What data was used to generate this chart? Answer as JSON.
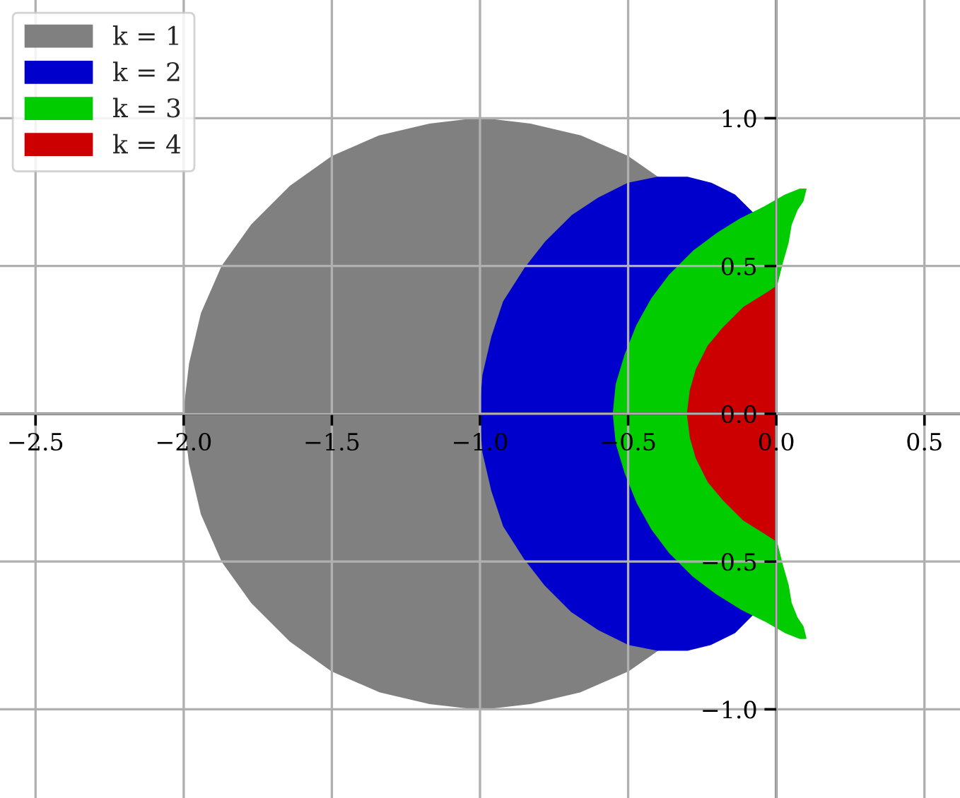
{
  "chart_data": {
    "type": "area",
    "xlim": [
      -2.62,
      0.62
    ],
    "ylim": [
      -1.3,
      1.4
    ],
    "xticks": [
      {
        "value": -2.5,
        "label": "−2.5"
      },
      {
        "value": -2,
        "label": "−2.0"
      },
      {
        "value": -1.5,
        "label": "−1.5"
      },
      {
        "value": -1,
        "label": "−1.0"
      },
      {
        "value": -0.5,
        "label": "−0.5"
      },
      {
        "value": 0,
        "label": "0.0"
      },
      0.5
    ],
    "yticks": [
      {
        "value": -1,
        "label": "−1.0"
      },
      {
        "value": -0.5,
        "label": "−0.5"
      },
      {
        "value": 0,
        "label": "0.0"
      },
      0.5,
      {
        "value": 1,
        "label": "1.0"
      }
    ],
    "grid": true,
    "legend": "top left",
    "series": [
      {
        "name": "k = 1",
        "color": "#808080",
        "x": [
          -0.4,
          -0.5,
          -0.66,
          -0.83,
          -1.0,
          -1.17,
          -1.34,
          -1.5,
          -1.64,
          -1.77,
          -1.87,
          -1.94,
          -1.98,
          -2.0,
          -1.98,
          -1.94,
          -1.87,
          -1.77,
          -1.64,
          -1.5,
          -1.34,
          -1.17,
          -1.0,
          -0.83,
          -0.66,
          -0.5,
          -0.4,
          -0.5,
          -0.6,
          -0.69,
          -0.78,
          -0.85,
          -0.92,
          -0.96,
          -0.99,
          -1.0,
          -0.99,
          -0.96,
          -0.92,
          -0.85,
          -0.78,
          -0.69,
          -0.6,
          -0.5
        ],
        "values": [
          0.8,
          0.87,
          0.94,
          0.98,
          1.0,
          0.98,
          0.94,
          0.87,
          0.77,
          0.64,
          0.5,
          0.34,
          0.17,
          0,
          -0.17,
          -0.34,
          -0.5,
          -0.64,
          -0.77,
          -0.87,
          -0.94,
          -0.98,
          -1.0,
          -0.98,
          -0.94,
          -0.87,
          -0.8,
          -0.78,
          -0.73,
          -0.67,
          -0.58,
          -0.49,
          -0.38,
          -0.26,
          -0.13,
          0,
          0.13,
          0.26,
          0.38,
          0.49,
          0.58,
          0.67,
          0.73,
          0.78
        ]
      },
      {
        "name": "k = 2",
        "color": "#0000cc",
        "x": [
          -0.08,
          -0.14,
          -0.22,
          -0.3,
          -0.4,
          -0.5,
          -0.6,
          -0.69,
          -0.78,
          -0.85,
          -0.92,
          -0.96,
          -0.99,
          -1.0,
          -0.99,
          -0.96,
          -0.92,
          -0.85,
          -0.78,
          -0.69,
          -0.6,
          -0.5,
          -0.4,
          -0.3,
          -0.22,
          -0.14,
          -0.08,
          -0.12,
          -0.2,
          -0.28,
          -0.36,
          -0.42,
          -0.47,
          -0.51,
          -0.54,
          -0.55,
          -0.54,
          -0.51,
          -0.47,
          -0.42,
          -0.36,
          -0.28,
          -0.2,
          -0.12
        ],
        "values": [
          0.68,
          0.74,
          0.78,
          0.8,
          0.8,
          0.78,
          0.73,
          0.67,
          0.58,
          0.49,
          0.38,
          0.26,
          0.13,
          0,
          -0.13,
          -0.26,
          -0.38,
          -0.49,
          -0.58,
          -0.67,
          -0.73,
          -0.78,
          -0.8,
          -0.8,
          -0.78,
          -0.74,
          -0.68,
          -0.66,
          -0.61,
          -0.55,
          -0.47,
          -0.39,
          -0.3,
          -0.2,
          -0.1,
          0,
          0.1,
          0.2,
          0.3,
          0.39,
          0.47,
          0.55,
          0.61,
          0.66
        ]
      },
      {
        "name": "k = 3",
        "color": "#00cc00",
        "x": [
          0.0,
          0.02,
          0.04,
          0.05,
          0.07,
          0.09,
          0.1,
          0.08,
          0.03,
          -0.04,
          -0.12,
          -0.2,
          -0.28,
          -0.36,
          -0.42,
          -0.47,
          -0.51,
          -0.54,
          -0.55,
          -0.54,
          -0.51,
          -0.47,
          -0.42,
          -0.36,
          -0.28,
          -0.2,
          -0.12,
          -0.04,
          0.03,
          0.08,
          0.1,
          0.09,
          0.07,
          0.05,
          0.04,
          0.02,
          0.0,
          -0.03,
          -0.11,
          -0.18,
          -0.23,
          -0.27,
          -0.29,
          -0.3,
          -0.29,
          -0.27,
          -0.23,
          -0.18,
          -0.11,
          -0.03
        ],
        "values": [
          0.43,
          0.51,
          0.58,
          0.64,
          0.69,
          0.72,
          0.76,
          0.76,
          0.74,
          0.7,
          0.66,
          0.61,
          0.55,
          0.47,
          0.39,
          0.3,
          0.2,
          0.1,
          0,
          -0.1,
          -0.2,
          -0.3,
          -0.39,
          -0.47,
          -0.55,
          -0.61,
          -0.66,
          -0.7,
          -0.74,
          -0.76,
          -0.76,
          -0.72,
          -0.69,
          -0.64,
          -0.58,
          -0.51,
          -0.43,
          -0.41,
          -0.36,
          -0.29,
          -0.23,
          -0.15,
          -0.08,
          0,
          0.08,
          0.15,
          0.23,
          0.29,
          0.36,
          0.41
        ]
      },
      {
        "name": "k = 4",
        "color": "#cc0000",
        "x": [
          0.0,
          -0.03,
          -0.11,
          -0.18,
          -0.23,
          -0.27,
          -0.29,
          -0.3,
          -0.29,
          -0.27,
          -0.23,
          -0.18,
          -0.11,
          -0.03,
          0.0,
          0.0
        ],
        "values": [
          0.43,
          0.41,
          0.36,
          0.29,
          0.23,
          0.15,
          0.08,
          0,
          -0.08,
          -0.15,
          -0.23,
          -0.29,
          -0.36,
          -0.41,
          -0.43,
          0
        ]
      }
    ]
  }
}
